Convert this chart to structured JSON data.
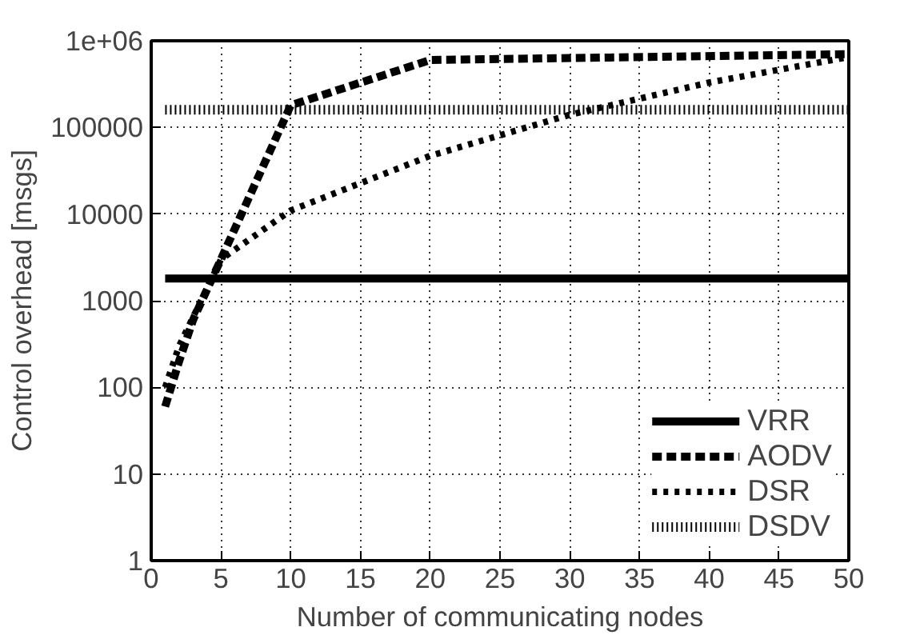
{
  "chart_data": {
    "type": "line",
    "xlabel": "Number of communicating nodes",
    "ylabel": "Control overhead [msgs]",
    "log": "y",
    "xlim": [
      0,
      50
    ],
    "xticks": [
      0,
      5,
      10,
      15,
      20,
      25,
      30,
      35,
      40,
      45,
      50
    ],
    "ylim": [
      1,
      1000000
    ],
    "yticks": [
      1,
      10,
      100,
      1000,
      10000,
      100000,
      {
        "value": 1000000,
        "label": "1e+06"
      }
    ],
    "grid": true,
    "legend": "bottom right",
    "series": [
      {
        "name": "VRR",
        "color": "#000000",
        "line_style": "solid",
        "x": [
          1,
          50
        ],
        "values": [
          1800,
          1800
        ]
      },
      {
        "name": "AODV",
        "color": "#000000",
        "line_style": "dashed",
        "x": [
          1,
          2,
          3,
          5,
          10,
          20,
          50
        ],
        "values": [
          60,
          200,
          600,
          3000,
          180000,
          600000,
          700000
        ]
      },
      {
        "name": "DSR",
        "color": "#000000",
        "line_style": "dotted",
        "x": [
          1,
          2,
          5,
          10,
          20,
          30,
          40,
          50
        ],
        "values": [
          100,
          300,
          3000,
          11000,
          47000,
          140000,
          330000,
          650000
        ]
      },
      {
        "name": "DSDV",
        "color": "#000000",
        "line_style": "densedot",
        "x": [
          1,
          50
        ],
        "values": [
          160000,
          160000
        ]
      }
    ]
  }
}
